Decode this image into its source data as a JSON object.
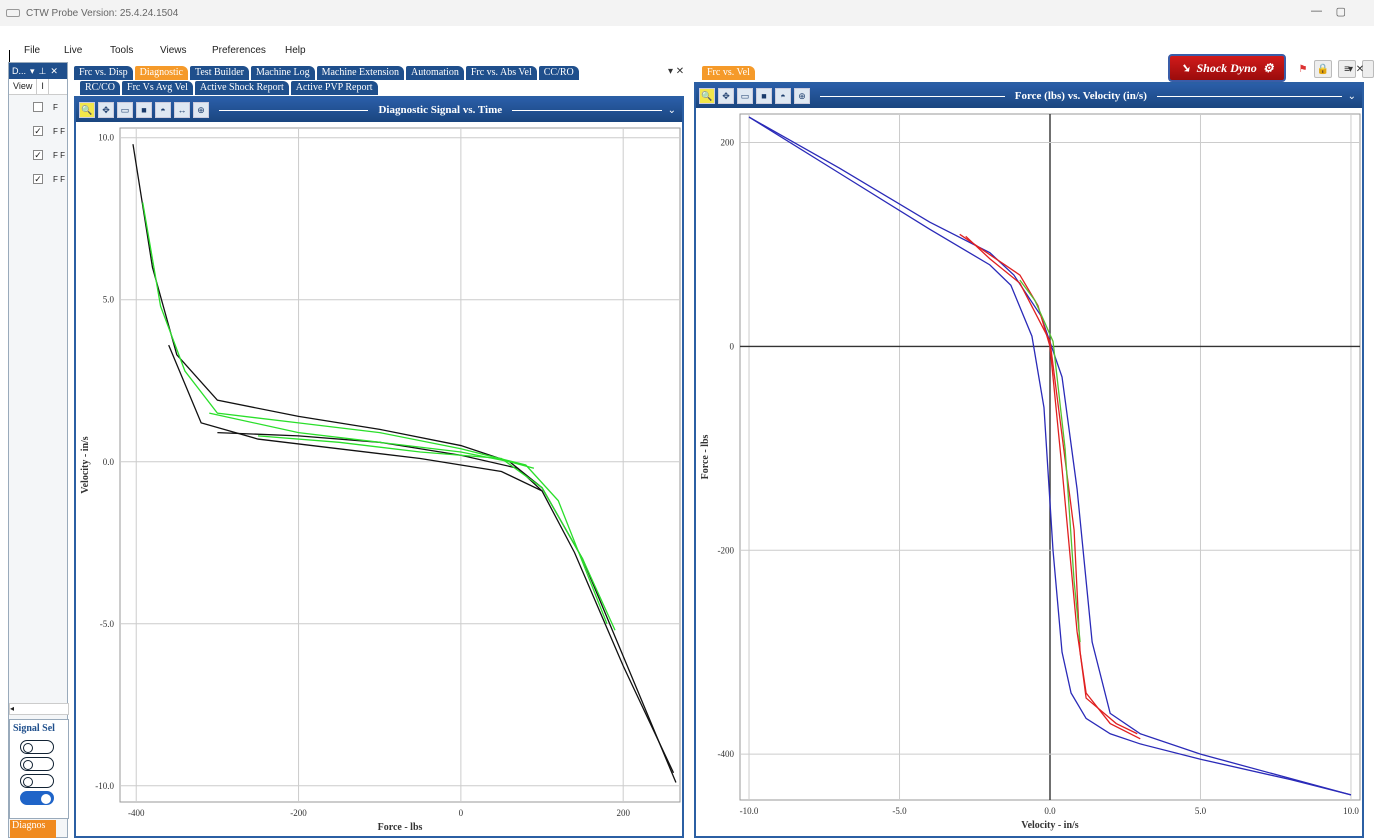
{
  "app": {
    "title": "CTW Probe Version: 25.4.24.1504"
  },
  "menu": [
    "File",
    "Live",
    "Tools",
    "Views",
    "Preferences",
    "Help"
  ],
  "shock_button": "Shock Dyno",
  "left_panel": {
    "header": "D...",
    "col_view": "View",
    "col_2": "I",
    "signal_sel": "Signal Sel",
    "rows": [
      {
        "checked": false,
        "label": "F"
      },
      {
        "checked": true,
        "label": "F F"
      },
      {
        "checked": true,
        "label": "F F"
      },
      {
        "checked": true,
        "label": "F F"
      }
    ],
    "bottom_tab": "Diagnos"
  },
  "left_tabs_row1": [
    "Frc vs. Disp",
    "Diagnostic",
    "Test Builder",
    "Machine Log",
    "Machine Extension",
    "Automation",
    "Frc vs. Abs Vel",
    "CC/RO"
  ],
  "left_tabs_row2": [
    "RC/CO",
    "Frc Vs Avg Vel",
    "Active Shock Report",
    "Active PVP Report"
  ],
  "right_tabs": [
    "Frc vs. Vel"
  ],
  "chart_data": [
    {
      "type": "line",
      "title": "Diagnostic Signal vs. Time",
      "xlabel": "Force - lbs",
      "ylabel": "Velocity - in/s",
      "xlim": [
        -420,
        270
      ],
      "ylim": [
        -10.5,
        10.3
      ],
      "xticks": [
        "-400",
        "-200",
        "0",
        "200"
      ],
      "xtick_values": [
        -400,
        -200,
        0,
        200
      ],
      "yticks": [
        "10.0",
        "5.0",
        "0.0",
        "-5.0",
        "-10.0"
      ],
      "ytick_values": [
        10,
        5,
        0,
        -5,
        -10
      ],
      "grid": true,
      "series": [
        {
          "color": "#111111",
          "x": [
            -404,
            -380,
            -350,
            -300,
            -200,
            -100,
            0,
            60,
            100,
            150,
            200,
            265
          ],
          "y": [
            9.8,
            6.0,
            3.3,
            1.9,
            1.4,
            1.0,
            0.5,
            0.0,
            -0.8,
            -3.0,
            -6.0,
            -9.9
          ]
        },
        {
          "color": "#111111",
          "x": [
            -360,
            -320,
            -250,
            -150,
            -50,
            50,
            100,
            140,
            200,
            262
          ],
          "y": [
            3.6,
            1.2,
            0.7,
            0.4,
            0.1,
            -0.3,
            -0.9,
            -2.8,
            -6.3,
            -9.6
          ]
        },
        {
          "color": "#111111",
          "x": [
            -300,
            -200,
            -100,
            0,
            70,
            100
          ],
          "y": [
            0.9,
            0.8,
            0.6,
            0.2,
            -0.2,
            -0.9
          ]
        },
        {
          "color": "#2adf2a",
          "x": [
            -392,
            -370,
            -340,
            -300,
            -200,
            -100,
            0,
            80,
            120,
            180
          ],
          "y": [
            8.0,
            4.8,
            2.8,
            1.5,
            1.2,
            0.9,
            0.4,
            -0.1,
            -1.2,
            -5.0
          ]
        },
        {
          "color": "#2adf2a",
          "x": [
            -310,
            -200,
            -100,
            0,
            60,
            90
          ],
          "y": [
            1.5,
            0.9,
            0.6,
            0.3,
            0.0,
            -0.2
          ]
        },
        {
          "color": "#2adf2a",
          "x": [
            -250,
            -150,
            -50,
            50,
            100,
            150,
            190
          ],
          "y": [
            0.8,
            0.6,
            0.3,
            0.1,
            -0.8,
            -3.0,
            -5.2
          ]
        }
      ]
    },
    {
      "type": "line",
      "title": "Force (lbs) vs. Velocity (in/s)",
      "xlabel": "Velocity - in/s",
      "ylabel": "Force - lbs",
      "xlim": [
        -10.3,
        10.3
      ],
      "ylim": [
        -445,
        228
      ],
      "xticks": [
        "-10.0",
        "-5.0",
        "0.0",
        "5.0",
        "10.0"
      ],
      "xtick_values": [
        -10,
        -5,
        0,
        5,
        10
      ],
      "yticks": [
        "200",
        "0",
        "-200",
        "-400"
      ],
      "ytick_values": [
        200,
        0,
        -200,
        -400
      ],
      "grid": true,
      "series": [
        {
          "color": "#2a2ab8",
          "x": [
            -10,
            -7,
            -4,
            -2,
            -1.3,
            -0.6,
            -0.2,
            0.1,
            0.4,
            0.7,
            1.2,
            2.0,
            3.0,
            5.0,
            8.0,
            10.0
          ],
          "y": [
            225,
            170,
            115,
            80,
            60,
            10,
            -60,
            -200,
            -300,
            -340,
            -365,
            -380,
            -390,
            -405,
            -425,
            -440
          ]
        },
        {
          "color": "#2a2ab8",
          "x": [
            -10,
            -7,
            -4,
            -2,
            -1.2,
            -0.3,
            0.4,
            0.9,
            1.4,
            2.0,
            3.0,
            5.0,
            10.0
          ],
          "y": [
            225,
            175,
            122,
            92,
            70,
            30,
            -30,
            -140,
            -290,
            -360,
            -380,
            -400,
            -440
          ]
        },
        {
          "color": "#e02020",
          "x": [
            -3.0,
            -2.0,
            -1.0,
            -0.4,
            0.0,
            0.4,
            0.9,
            1.2,
            2.0,
            3.0
          ],
          "y": [
            110,
            90,
            70,
            40,
            0,
            -120,
            -280,
            -340,
            -370,
            -385
          ]
        },
        {
          "color": "#e02020",
          "x": [
            -2.8,
            -2.0,
            -1.0,
            0.0,
            0.8,
            1.0,
            1.2,
            2.2,
            2.9
          ],
          "y": [
            108,
            86,
            62,
            5,
            -180,
            -300,
            -345,
            -370,
            -380
          ]
        },
        {
          "color": "#55c030",
          "x": [
            -1.0,
            -0.5,
            0.1,
            0.5,
            0.8,
            1.0
          ],
          "y": [
            65,
            45,
            5,
            -100,
            -230,
            -290
          ]
        }
      ]
    }
  ]
}
